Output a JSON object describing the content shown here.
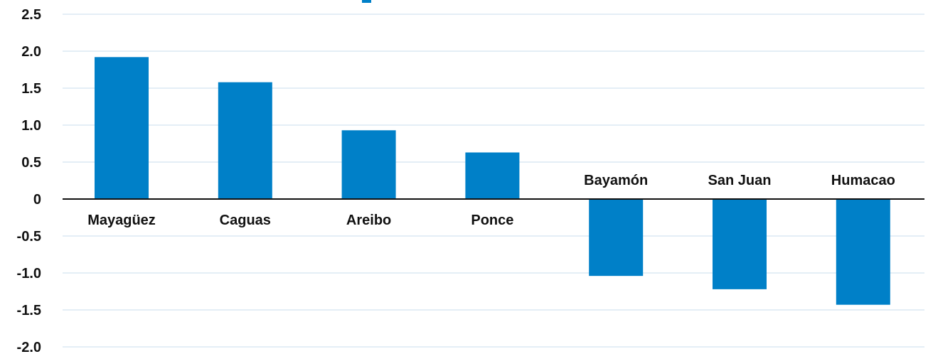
{
  "colors": {
    "bar": "#0080c8",
    "grid": "#c9dcec",
    "axis": "#111111",
    "text": "#111111"
  },
  "chart_data": {
    "type": "bar",
    "categories": [
      "Mayagüez",
      "Caguas",
      "Areibo",
      "Ponce",
      "Bayamón",
      "San Juan",
      "Humacao"
    ],
    "values": [
      1.92,
      1.58,
      0.93,
      0.63,
      -1.04,
      -1.22,
      -1.43
    ],
    "ylim": [
      -2.0,
      2.5
    ],
    "yticks": [
      2.5,
      2.0,
      1.5,
      1.0,
      0.5,
      0,
      -0.5,
      -1.0,
      -1.5,
      -2.0
    ],
    "ytick_labels": [
      "2.5",
      "2.0",
      "1.5",
      "1.0",
      "0.5",
      "0",
      "-0.5",
      "-1.0",
      "-1.5",
      "-2.0"
    ],
    "grid": true,
    "legend": false
  }
}
